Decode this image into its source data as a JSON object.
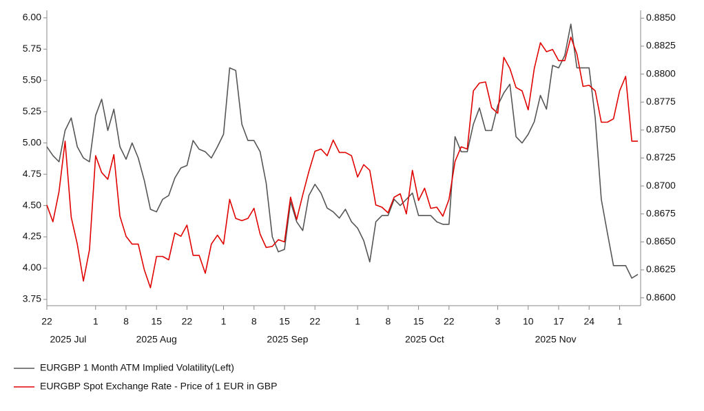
{
  "chart_data": {
    "type": "line",
    "x": [
      "2025-07-22",
      "2025-07-23",
      "2025-07-24",
      "2025-07-25",
      "2025-07-28",
      "2025-07-29",
      "2025-07-30",
      "2025-07-31",
      "2025-08-01",
      "2025-08-04",
      "2025-08-05",
      "2025-08-06",
      "2025-08-07",
      "2025-08-08",
      "2025-08-11",
      "2025-08-12",
      "2025-08-13",
      "2025-08-14",
      "2025-08-15",
      "2025-08-18",
      "2025-08-19",
      "2025-08-20",
      "2025-08-21",
      "2025-08-22",
      "2025-08-25",
      "2025-08-26",
      "2025-08-27",
      "2025-08-28",
      "2025-08-29",
      "2025-09-01",
      "2025-09-02",
      "2025-09-03",
      "2025-09-04",
      "2025-09-05",
      "2025-09-08",
      "2025-09-09",
      "2025-09-10",
      "2025-09-11",
      "2025-09-12",
      "2025-09-15",
      "2025-09-16",
      "2025-09-17",
      "2025-09-18",
      "2025-09-19",
      "2025-09-22",
      "2025-09-23",
      "2025-09-24",
      "2025-09-25",
      "2025-09-26",
      "2025-09-29",
      "2025-09-30",
      "2025-10-01",
      "2025-10-02",
      "2025-10-03",
      "2025-10-06",
      "2025-10-07",
      "2025-10-08",
      "2025-10-09",
      "2025-10-10",
      "2025-10-13",
      "2025-10-14",
      "2025-10-15",
      "2025-10-16",
      "2025-10-17",
      "2025-10-20",
      "2025-10-21",
      "2025-10-22",
      "2025-10-23",
      "2025-10-24",
      "2025-10-27",
      "2025-10-28",
      "2025-10-29",
      "2025-10-30",
      "2025-10-31",
      "2025-11-03",
      "2025-11-04",
      "2025-11-05",
      "2025-11-06",
      "2025-11-07",
      "2025-11-10",
      "2025-11-11",
      "2025-11-12",
      "2025-11-13",
      "2025-11-14",
      "2025-11-17",
      "2025-11-18",
      "2025-11-19",
      "2025-11-20",
      "2025-11-21",
      "2025-11-24",
      "2025-11-25",
      "2025-11-26",
      "2025-11-27",
      "2025-11-28",
      "2025-12-01",
      "2025-12-02",
      "2025-12-03",
      "2025-12-04"
    ],
    "series": [
      {
        "name": "EURGBP 1 Month ATM Implied Volatility(Left)",
        "color": "#555555",
        "axis": "y",
        "values": [
          4.97,
          4.9,
          4.85,
          5.1,
          5.2,
          4.97,
          4.88,
          4.85,
          5.22,
          5.35,
          5.1,
          5.27,
          4.97,
          4.87,
          5.0,
          4.88,
          4.7,
          4.47,
          4.45,
          4.55,
          4.58,
          4.72,
          4.8,
          4.82,
          5.02,
          4.95,
          4.93,
          4.88,
          4.97,
          5.07,
          5.6,
          5.58,
          5.15,
          5.02,
          5.02,
          4.93,
          4.68,
          4.25,
          4.13,
          4.15,
          4.53,
          4.37,
          4.3,
          4.58,
          4.67,
          4.6,
          4.48,
          4.45,
          4.4,
          4.47,
          4.37,
          4.32,
          4.22,
          4.05,
          4.37,
          4.42,
          4.42,
          4.55,
          4.5,
          4.55,
          4.6,
          4.42,
          4.42,
          4.42,
          4.37,
          4.35,
          4.35,
          5.05,
          4.93,
          4.93,
          5.15,
          5.28,
          5.1,
          5.1,
          5.3,
          5.4,
          5.47,
          5.05,
          5.0,
          5.07,
          5.17,
          5.38,
          5.27,
          5.62,
          5.6,
          5.7,
          5.95,
          5.6,
          5.6,
          5.6,
          5.2,
          4.55,
          4.28,
          4.02,
          4.02,
          4.02,
          3.92,
          3.95
        ]
      },
      {
        "name": "EURGBP Spot Exchange Rate - Price of 1 EUR in GBP",
        "color": "#e00000",
        "axis": "y2",
        "values": [
          0.8683,
          0.8668,
          0.8695,
          0.874,
          0.8672,
          0.8648,
          0.8615,
          0.8643,
          0.8727,
          0.8712,
          0.8706,
          0.8728,
          0.8673,
          0.8655,
          0.8648,
          0.8648,
          0.8625,
          0.8609,
          0.8637,
          0.8637,
          0.8634,
          0.8658,
          0.8655,
          0.8665,
          0.8638,
          0.8638,
          0.8622,
          0.8648,
          0.8656,
          0.8648,
          0.8688,
          0.8671,
          0.8669,
          0.8671,
          0.868,
          0.8657,
          0.8645,
          0.8646,
          0.8652,
          0.865,
          0.869,
          0.867,
          0.8692,
          0.8713,
          0.8731,
          0.8733,
          0.8727,
          0.8741,
          0.873,
          0.873,
          0.8727,
          0.8708,
          0.8719,
          0.8714,
          0.8683,
          0.8681,
          0.8676,
          0.869,
          0.8693,
          0.8675,
          0.8714,
          0.8687,
          0.8698,
          0.868,
          0.8681,
          0.8673,
          0.8688,
          0.8722,
          0.8735,
          0.8733,
          0.8785,
          0.8792,
          0.8793,
          0.877,
          0.8765,
          0.8815,
          0.8805,
          0.8788,
          0.8785,
          0.8768,
          0.8805,
          0.8828,
          0.882,
          0.8822,
          0.8812,
          0.8812,
          0.8833,
          0.8818,
          0.8789,
          0.879,
          0.8785,
          0.8757,
          0.8757,
          0.876,
          0.8785,
          0.8798,
          0.874,
          0.874
        ]
      }
    ],
    "xticks": [
      {
        "value": "2025-07-22",
        "label": "22"
      },
      {
        "value": "2025-08-01",
        "label": "1"
      },
      {
        "value": "2025-08-08",
        "label": "8"
      },
      {
        "value": "2025-08-15",
        "label": "15"
      },
      {
        "value": "2025-08-22",
        "label": "22"
      },
      {
        "value": "2025-09-01",
        "label": "1"
      },
      {
        "value": "2025-09-08",
        "label": "8"
      },
      {
        "value": "2025-09-15",
        "label": "15"
      },
      {
        "value": "2025-09-22",
        "label": "22"
      },
      {
        "value": "2025-10-01",
        "label": "1"
      },
      {
        "value": "2025-10-08",
        "label": "8"
      },
      {
        "value": "2025-10-15",
        "label": "15"
      },
      {
        "value": "2025-10-22",
        "label": "22"
      },
      {
        "value": "2025-11-03",
        "label": "3"
      },
      {
        "value": "2025-11-10",
        "label": "10"
      },
      {
        "value": "2025-11-17",
        "label": "17"
      },
      {
        "value": "2025-11-24",
        "label": "24"
      },
      {
        "value": "2025-12-01",
        "label": "1"
      }
    ],
    "month_labels": [
      {
        "value": "2025-07",
        "label": "2025 Jul"
      },
      {
        "value": "2025-08",
        "label": "2025 Aug"
      },
      {
        "value": "2025-09",
        "label": "2025 Sep"
      },
      {
        "value": "2025-10",
        "label": "2025 Oct"
      },
      {
        "value": "2025-11",
        "label": "2025 Nov"
      }
    ],
    "ylim": [
      3.7,
      6.06
    ],
    "yticks": [
      {
        "value": 3.75,
        "label": "3.75"
      },
      {
        "value": 4,
        "label": "4.00"
      },
      {
        "value": 4.25,
        "label": "4.25"
      },
      {
        "value": 4.5,
        "label": "4.50"
      },
      {
        "value": 4.75,
        "label": "4.75"
      },
      {
        "value": 5,
        "label": "5.00"
      },
      {
        "value": 5.25,
        "label": "5.25"
      },
      {
        "value": 5.5,
        "label": "5.50"
      },
      {
        "value": 5.75,
        "label": "5.75"
      },
      {
        "value": 6,
        "label": "6.00"
      }
    ],
    "y2lim": [
      0.8593,
      0.8857
    ],
    "y2ticks": [
      {
        "value": 0.86,
        "label": "0.8600"
      },
      {
        "value": 0.8625,
        "label": "0.8625"
      },
      {
        "value": 0.865,
        "label": "0.8650"
      },
      {
        "value": 0.8675,
        "label": "0.8675"
      },
      {
        "value": 0.87,
        "label": "0.8700"
      },
      {
        "value": 0.8725,
        "label": "0.8725"
      },
      {
        "value": 0.875,
        "label": "0.8750"
      },
      {
        "value": 0.8775,
        "label": "0.8775"
      },
      {
        "value": 0.88,
        "label": "0.8800"
      },
      {
        "value": 0.8825,
        "label": "0.8825"
      },
      {
        "value": 0.885,
        "label": "0.8850"
      }
    ],
    "grid": false,
    "legend": "bottom-left"
  }
}
